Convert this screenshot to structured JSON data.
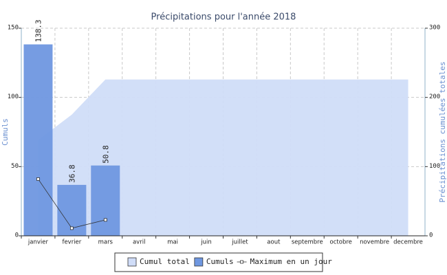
{
  "chart_data": {
    "type": "bar",
    "title": "Précipitations pour l'année 2018",
    "categories": [
      "janvier",
      "fevrier",
      "mars",
      "avril",
      "mai",
      "juin",
      "juillet",
      "aout",
      "septembre",
      "octobre",
      "novembre",
      "decembre"
    ],
    "series": [
      {
        "name": "Cumul total",
        "type": "area",
        "axis": "y2",
        "color": "#d0ddf8",
        "values": [
          138.3,
          175.1,
          225.9,
          225.9,
          225.9,
          225.9,
          225.9,
          225.9,
          225.9,
          225.9,
          225.9,
          225.9
        ]
      },
      {
        "name": "Cumuls",
        "type": "bar",
        "color": "#6f97e0",
        "values": [
          138.3,
          36.8,
          50.8,
          null,
          null,
          null,
          null,
          null,
          null,
          null,
          null,
          null
        ]
      },
      {
        "name": "Maximum en un jour",
        "type": "line",
        "color": "#333333",
        "values": [
          41,
          5.5,
          11.5,
          null,
          null,
          null,
          null,
          null,
          null,
          null,
          null,
          null
        ]
      }
    ],
    "ylabel": "Cumuls",
    "y2label": "Précipitations cumulées totales",
    "ylim": [
      0,
      150
    ],
    "yticks": [
      0,
      50,
      100,
      150
    ],
    "y2lim": [
      0,
      300
    ],
    "y2ticks": [
      0,
      100,
      200,
      300
    ],
    "grid": true,
    "legend": "bottom"
  }
}
